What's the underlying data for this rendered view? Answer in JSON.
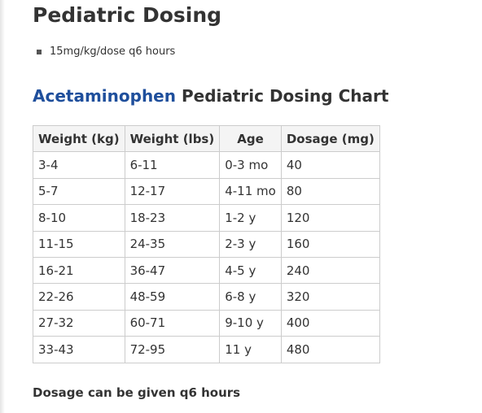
{
  "header": {
    "title": "Pediatric Dosing"
  },
  "bullets": [
    "15mg/kg/dose q6 hours"
  ],
  "section": {
    "drug": "Acetaminophen",
    "title": "Pediatric Dosing Chart"
  },
  "table": {
    "columns": [
      "Weight (kg)",
      "Weight (lbs)",
      "Age",
      "Dosage (mg)"
    ],
    "rows": [
      [
        "3-4",
        "6-11",
        "0-3 mo",
        "40"
      ],
      [
        "5-7",
        "12-17",
        "4-11 mo",
        "80"
      ],
      [
        "8-10",
        "18-23",
        "1-2 y",
        "120"
      ],
      [
        "11-15",
        "24-35",
        "2-3 y",
        "160"
      ],
      [
        "16-21",
        "36-47",
        "4-5 y",
        "240"
      ],
      [
        "22-26",
        "48-59",
        "6-8 y",
        "320"
      ],
      [
        "27-32",
        "60-71",
        "9-10 y",
        "400"
      ],
      [
        "33-43",
        "72-95",
        "11 y",
        "480"
      ]
    ]
  },
  "footer": {
    "note": "Dosage can be given q6 hours"
  }
}
